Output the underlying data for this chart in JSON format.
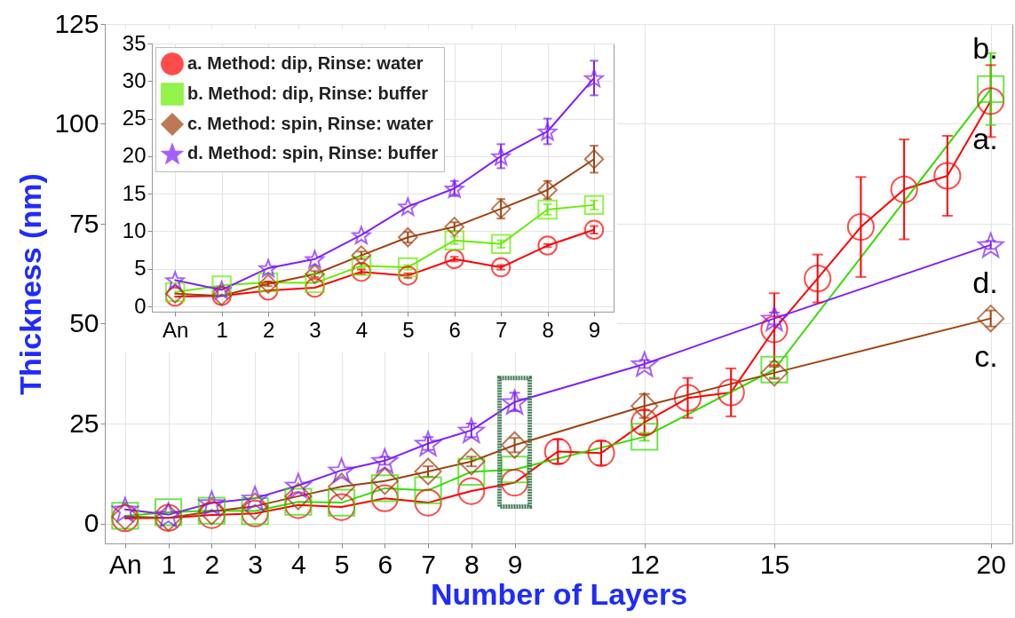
{
  "chart_data": [
    {
      "type": "line",
      "xlabel": "Number of Layers",
      "ylabel": "Thickness  (nm)",
      "xlim": [
        -0.47,
        20.5
      ],
      "ylim": [
        -5,
        125
      ],
      "xticks": [
        {
          "value": 0,
          "label": "An"
        },
        1,
        2,
        3,
        4,
        5,
        6,
        7,
        8,
        9,
        12,
        15,
        20
      ],
      "yticks": [
        0,
        25,
        50,
        75,
        100,
        125
      ],
      "grid": true,
      "series": [
        {
          "name": "a.",
          "color": "#ff0000",
          "marker": "circle",
          "x": [
            0,
            1,
            2,
            3,
            4,
            5,
            6,
            7,
            8,
            9,
            10,
            11,
            12,
            13,
            14,
            15,
            16,
            17,
            18,
            19,
            20
          ],
          "values": [
            1.3,
            1.4,
            2.1,
            2.5,
            4.6,
            4.1,
            6.3,
            5.2,
            8.1,
            10.2,
            18.0,
            17.6,
            25.3,
            31.4,
            32.8,
            48.6,
            61.3,
            74.2,
            83.6,
            87,
            105.7
          ],
          "errors": [
            null,
            null,
            null,
            null,
            null,
            null,
            null,
            null,
            null,
            null,
            3,
            3,
            3,
            5,
            6,
            9,
            6,
            12.5,
            12.5,
            10,
            9
          ]
        },
        {
          "name": "b.",
          "color": "#33dd00",
          "marker": "square",
          "x": [
            0,
            1,
            2,
            3,
            4,
            5,
            6,
            7,
            8,
            9,
            12,
            15,
            20
          ],
          "values": [
            1.9,
            2.8,
            3.2,
            3.1,
            5.4,
            5.2,
            8.8,
            8.3,
            12.9,
            13.5,
            21.7,
            38.5,
            108.7
          ],
          "errors": [
            null,
            null,
            null,
            null,
            null,
            null,
            null,
            null,
            null,
            null,
            1,
            2,
            9
          ]
        },
        {
          "name": "c.",
          "color": "#a0410d",
          "marker": "diamond",
          "x": [
            0,
            1,
            2,
            3,
            4,
            5,
            6,
            7,
            8,
            9,
            12,
            15,
            20
          ],
          "values": [
            1.7,
            1.4,
            3.0,
            4.3,
            6.8,
            9.2,
            10.6,
            13.0,
            15.5,
            19.6,
            29.4,
            37.7,
            51.3
          ],
          "errors": [
            null,
            null,
            null,
            null,
            null,
            null,
            null,
            1.3,
            1.2,
            1.8,
            3,
            1.5,
            2
          ]
        },
        {
          "name": "d.",
          "color": "#7f1fff",
          "marker": "star",
          "x": [
            0,
            1,
            2,
            3,
            4,
            5,
            6,
            7,
            8,
            9,
            12,
            15,
            20
          ],
          "values": [
            3.5,
            2.2,
            5.1,
            6.3,
            9.5,
            13.3,
            15.7,
            20.0,
            23.3,
            30.4,
            39.9,
            51.3,
            69.7
          ],
          "errors": [
            null,
            null,
            null,
            null,
            null,
            null,
            1.0,
            1.6,
            1.7,
            2.3,
            1,
            1.5,
            1
          ]
        }
      ]
    },
    {
      "type": "line",
      "x": [
        0,
        1,
        2,
        3,
        4,
        5,
        6,
        7,
        8,
        9
      ],
      "xlim": [
        -0.5,
        9.42
      ],
      "ylim": [
        -0.7,
        35
      ],
      "xticks": [
        {
          "value": 0,
          "label": "An"
        },
        1,
        2,
        3,
        4,
        5,
        6,
        7,
        8,
        9
      ],
      "yticks": [
        0,
        5,
        10,
        15,
        20,
        25,
        30,
        35
      ],
      "grid": true,
      "legend": "top left",
      "series": [
        {
          "name": "a. Method: dip, Rinse: water",
          "color": "#ff0000",
          "marker": "circle",
          "values": [
            1.3,
            1.4,
            2.1,
            2.5,
            4.6,
            4.1,
            6.3,
            5.2,
            8.1,
            10.2
          ],
          "errors": [
            null,
            null,
            null,
            null,
            0.3,
            0.3,
            0.3,
            0.3,
            0.2,
            0.5
          ]
        },
        {
          "name": "b. Method: dip, Rinse: buffer",
          "color": "#66ee00",
          "marker": "square",
          "values": [
            1.9,
            2.8,
            3.2,
            3.1,
            5.4,
            5.2,
            8.8,
            8.3,
            12.9,
            13.5
          ],
          "errors": [
            null,
            null,
            null,
            null,
            0.3,
            0.3,
            0.5,
            0.5,
            0.7,
            0.6
          ]
        },
        {
          "name": "c. Method: spin, Rinse: water",
          "color": "#a0410d",
          "marker": "diamond",
          "values": [
            1.7,
            1.4,
            3.0,
            4.3,
            6.8,
            9.2,
            10.6,
            13.0,
            15.5,
            19.6
          ],
          "errors": [
            null,
            null,
            0.3,
            0.4,
            0.5,
            0.7,
            0.6,
            1.3,
            1.2,
            1.8
          ]
        },
        {
          "name": "d. Method: spin, Rinse: buffer",
          "color": "#7f1fff",
          "marker": "star",
          "values": [
            3.5,
            2.2,
            5.1,
            6.3,
            9.5,
            13.3,
            15.7,
            20.0,
            23.3,
            30.4
          ],
          "errors": [
            null,
            null,
            null,
            null,
            null,
            null,
            1.0,
            1.6,
            1.7,
            2.3
          ]
        }
      ]
    }
  ]
}
